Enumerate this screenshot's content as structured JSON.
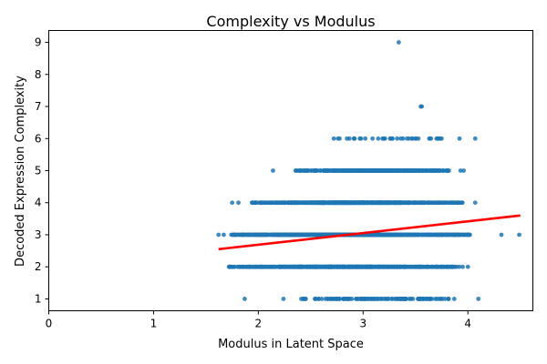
{
  "chart_data": {
    "type": "scatter",
    "title": "Complexity vs Modulus",
    "xlabel": "Modulus in Latent Space",
    "ylabel": "Decoded Expression Complexity",
    "xlim": [
      0,
      4.62
    ],
    "ylim": [
      0.63,
      9.37
    ],
    "xticks": [
      0,
      1,
      2,
      3,
      4
    ],
    "yticks": [
      1,
      2,
      3,
      4,
      5,
      6,
      7,
      8,
      9
    ],
    "grid": false,
    "point_color": "#1f77b4",
    "trend_color": "#ff0000",
    "trend_line": {
      "x": [
        1.62,
        4.5
      ],
      "y": [
        2.55,
        3.6
      ]
    },
    "bands": [
      {
        "y": 1,
        "x_min": 2.42,
        "x_max": 3.82,
        "density": 120,
        "sparse": true
      },
      {
        "y": 2,
        "x_min": 1.72,
        "x_max": 3.92,
        "density": 900,
        "sparse": false
      },
      {
        "y": 3,
        "x_min": 1.74,
        "x_max": 4.02,
        "density": 1000,
        "sparse": false
      },
      {
        "y": 4,
        "x_min": 1.92,
        "x_max": 3.95,
        "density": 900,
        "sparse": false
      },
      {
        "y": 5,
        "x_min": 2.35,
        "x_max": 3.82,
        "density": 400,
        "sparse": false
      },
      {
        "y": 6,
        "x_min": 2.75,
        "x_max": 3.75,
        "density": 30,
        "sparse": true
      }
    ],
    "extra_points": [
      {
        "x": 1.87,
        "y": 1
      },
      {
        "x": 2.24,
        "y": 1
      },
      {
        "x": 2.41,
        "y": 1
      },
      {
        "x": 3.87,
        "y": 1
      },
      {
        "x": 4.1,
        "y": 1
      },
      {
        "x": 1.72,
        "y": 2
      },
      {
        "x": 3.95,
        "y": 2
      },
      {
        "x": 4.0,
        "y": 2
      },
      {
        "x": 1.62,
        "y": 3
      },
      {
        "x": 1.67,
        "y": 3
      },
      {
        "x": 4.32,
        "y": 3
      },
      {
        "x": 4.49,
        "y": 3
      },
      {
        "x": 1.75,
        "y": 4
      },
      {
        "x": 1.81,
        "y": 4
      },
      {
        "x": 4.07,
        "y": 4
      },
      {
        "x": 2.14,
        "y": 5
      },
      {
        "x": 3.93,
        "y": 5
      },
      {
        "x": 3.96,
        "y": 5
      },
      {
        "x": 2.72,
        "y": 6
      },
      {
        "x": 2.76,
        "y": 6
      },
      {
        "x": 2.98,
        "y": 6
      },
      {
        "x": 3.09,
        "y": 6
      },
      {
        "x": 3.36,
        "y": 6
      },
      {
        "x": 3.47,
        "y": 6
      },
      {
        "x": 3.5,
        "y": 6
      },
      {
        "x": 3.7,
        "y": 6
      },
      {
        "x": 3.72,
        "y": 6
      },
      {
        "x": 3.92,
        "y": 6
      },
      {
        "x": 4.07,
        "y": 6
      },
      {
        "x": 3.55,
        "y": 7
      },
      {
        "x": 3.56,
        "y": 7
      },
      {
        "x": 3.34,
        "y": 9
      }
    ]
  }
}
